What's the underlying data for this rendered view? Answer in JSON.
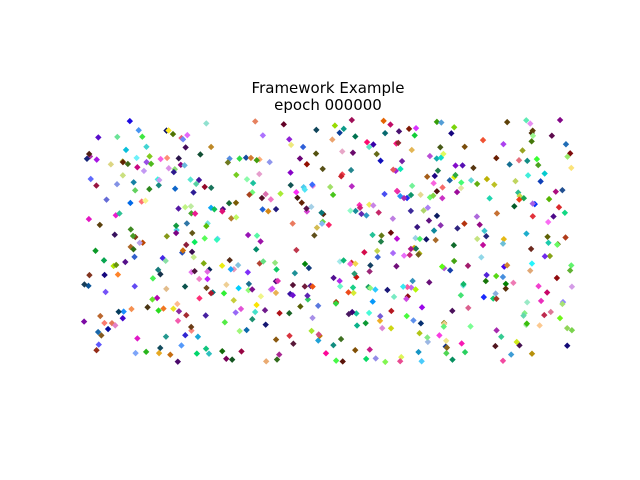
{
  "chart_data": {
    "type": "scatter",
    "title": "Framework Example",
    "subtitle": "epoch 000000",
    "xlabel": "",
    "ylabel": "",
    "xlim": [
      0,
      1
    ],
    "ylim": [
      0,
      1
    ],
    "axes_visible": false,
    "grid": false,
    "marker": "diamond",
    "point_count": 600,
    "point_colors": "random",
    "point_distribution": "uniform random over [0,1] x [0,1]"
  }
}
